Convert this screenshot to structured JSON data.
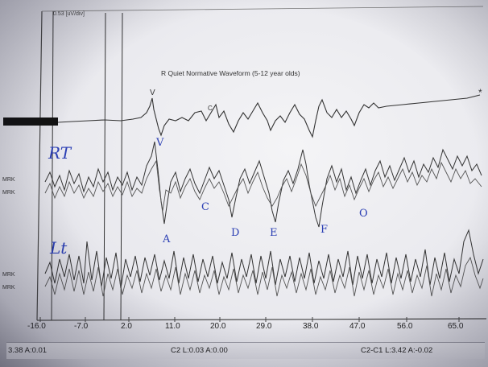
{
  "plot": {
    "scale_label": "0.53 [uV/div]",
    "waveform_title": "R Quiet Normative Waveform (5-12 year olds)",
    "marker_v": "V",
    "marker_c": "C",
    "marker_star": "*",
    "channel_labels": [
      "MRK",
      "MRK",
      "MRK",
      "MRK"
    ],
    "x_ticks": [
      "-16.0",
      "-7.0",
      "2.0",
      "11.0",
      "20.0",
      "29.0",
      "38.0",
      "47.0",
      "56.0",
      "65.0"
    ]
  },
  "handwriting": {
    "rt": "RT",
    "lt": "Lt",
    "roman_v": "Ⅴ",
    "peaks": [
      "A",
      "C",
      "D",
      "E",
      "F",
      "O"
    ]
  },
  "status_bar": {
    "left": "3.38 A:0.01",
    "middle": "C2 L:0.03 A:0.00",
    "right": "C2-C1 L:3.42 A:-0.02"
  },
  "colors": {
    "trace": "#333333",
    "handwriting": "#2b3fb4"
  }
}
